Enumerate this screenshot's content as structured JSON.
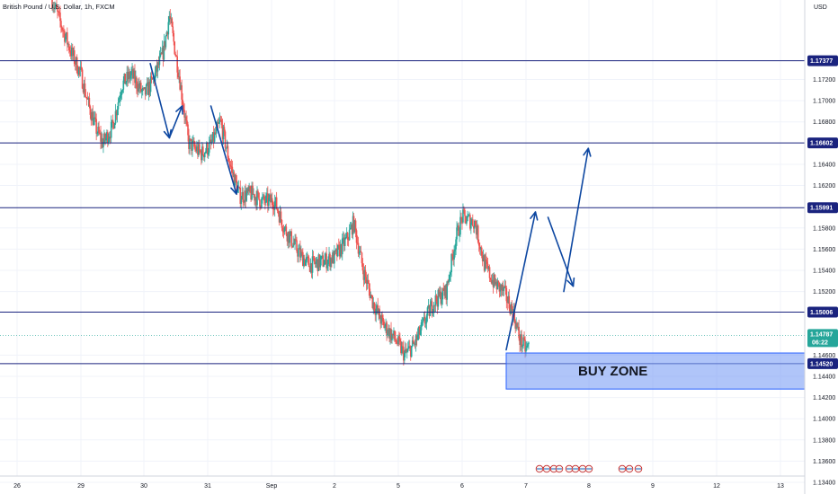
{
  "header": {
    "title": "British Pound / U.S. Dollar, 1h, FXCM",
    "currency": "USD"
  },
  "colors": {
    "up": "#26a69a",
    "down": "#ef5350",
    "level_line": "#1a237e",
    "level_tag": "#1a237e",
    "price_tag": "#26a69a",
    "arrow": "#0d47a1",
    "buy_zone_fill": "#7b9ff5",
    "buy_zone_stroke": "#2962ff",
    "grid": "#f0f3fa"
  },
  "chart_data": {
    "type": "candlestick",
    "instrument": "GBPUSD",
    "timeframe": "1h",
    "ylim": [
      1.1329,
      1.1795
    ],
    "y_ticks": [
      "1.17200",
      "1.17000",
      "1.16800",
      "1.16400",
      "1.16200",
      "1.15800",
      "1.15600",
      "1.15400",
      "1.15200",
      "1.14600",
      "1.14400",
      "1.14200",
      "1.14000",
      "1.13800",
      "1.13600",
      "1.13400"
    ],
    "x_ticks": [
      {
        "label": "26",
        "day": 0
      },
      {
        "label": "29",
        "day": 1
      },
      {
        "label": "30",
        "day": 2
      },
      {
        "label": "31",
        "day": 3
      },
      {
        "label": "Sep",
        "day": 4
      },
      {
        "label": "2",
        "day": 5
      },
      {
        "label": "5",
        "day": 6
      },
      {
        "label": "6",
        "day": 7
      },
      {
        "label": "7",
        "day": 8
      },
      {
        "label": "8",
        "day": 9
      },
      {
        "label": "9",
        "day": 10
      },
      {
        "label": "12",
        "day": 11
      },
      {
        "label": "13",
        "day": 12
      }
    ],
    "levels": [
      {
        "value": 1.17377,
        "label": "1.17377"
      },
      {
        "value": 1.16602,
        "label": "1.16602"
      },
      {
        "value": 1.15991,
        "label": "1.15991"
      },
      {
        "value": 1.15006,
        "label": "1.15006"
      },
      {
        "value": 1.1452,
        "label": "1.14520"
      }
    ],
    "current_price": {
      "value": 1.14787,
      "label": "1.14787",
      "countdown": "06:22"
    },
    "buy_zone": {
      "label": "BUY ZONE",
      "top": 1.1462,
      "bottom": 1.1428,
      "from_day": 7.69
    },
    "path": [
      [
        0.55,
        1.1795
      ],
      [
        0.7,
        1.177
      ],
      [
        0.85,
        1.1745
      ],
      [
        1.0,
        1.1725
      ],
      [
        1.1,
        1.17
      ],
      [
        1.25,
        1.1672
      ],
      [
        1.35,
        1.166
      ],
      [
        1.5,
        1.1675
      ],
      [
        1.65,
        1.1715
      ],
      [
        1.8,
        1.1725
      ],
      [
        2.0,
        1.1705
      ],
      [
        2.15,
        1.172
      ],
      [
        2.3,
        1.1745
      ],
      [
        2.4,
        1.178
      ],
      [
        2.55,
        1.1725
      ],
      [
        2.7,
        1.166
      ],
      [
        2.9,
        1.165
      ],
      [
        3.05,
        1.1658
      ],
      [
        3.2,
        1.168
      ],
      [
        3.35,
        1.164
      ],
      [
        3.5,
        1.161
      ],
      [
        3.7,
        1.1612
      ],
      [
        3.85,
        1.1605
      ],
      [
        4.05,
        1.1605
      ],
      [
        4.2,
        1.158
      ],
      [
        4.45,
        1.1555
      ],
      [
        4.6,
        1.1545
      ],
      [
        4.8,
        1.1548
      ],
      [
        5.0,
        1.1552
      ],
      [
        5.2,
        1.157
      ],
      [
        5.3,
        1.1585
      ],
      [
        5.45,
        1.154
      ],
      [
        5.6,
        1.151
      ],
      [
        5.75,
        1.149
      ],
      [
        5.95,
        1.1475
      ],
      [
        6.1,
        1.146
      ],
      [
        6.25,
        1.147
      ],
      [
        6.4,
        1.149
      ],
      [
        6.55,
        1.151
      ],
      [
        6.75,
        1.152
      ],
      [
        6.9,
        1.157
      ],
      [
        7.0,
        1.159
      ],
      [
        7.2,
        1.1585
      ],
      [
        7.35,
        1.1545
      ],
      [
        7.5,
        1.1528
      ],
      [
        7.65,
        1.152
      ],
      [
        7.8,
        1.15
      ],
      [
        7.9,
        1.1475
      ],
      [
        8.0,
        1.1465
      ],
      [
        8.05,
        1.147
      ]
    ],
    "drawn_arrows": [
      [
        [
          2.1,
          1.1735
        ],
        [
          2.4,
          1.1665
        ]
      ],
      [
        [
          2.4,
          1.1665
        ],
        [
          2.6,
          1.1695
        ]
      ],
      [
        [
          3.05,
          1.1695
        ],
        [
          3.45,
          1.1612
        ]
      ],
      [
        [
          7.69,
          1.1465
        ],
        [
          8.15,
          1.1595
        ]
      ],
      [
        [
          8.35,
          1.159
        ],
        [
          8.75,
          1.1525
        ]
      ],
      [
        [
          8.6,
          1.152
        ],
        [
          8.99,
          1.1655
        ]
      ]
    ]
  }
}
